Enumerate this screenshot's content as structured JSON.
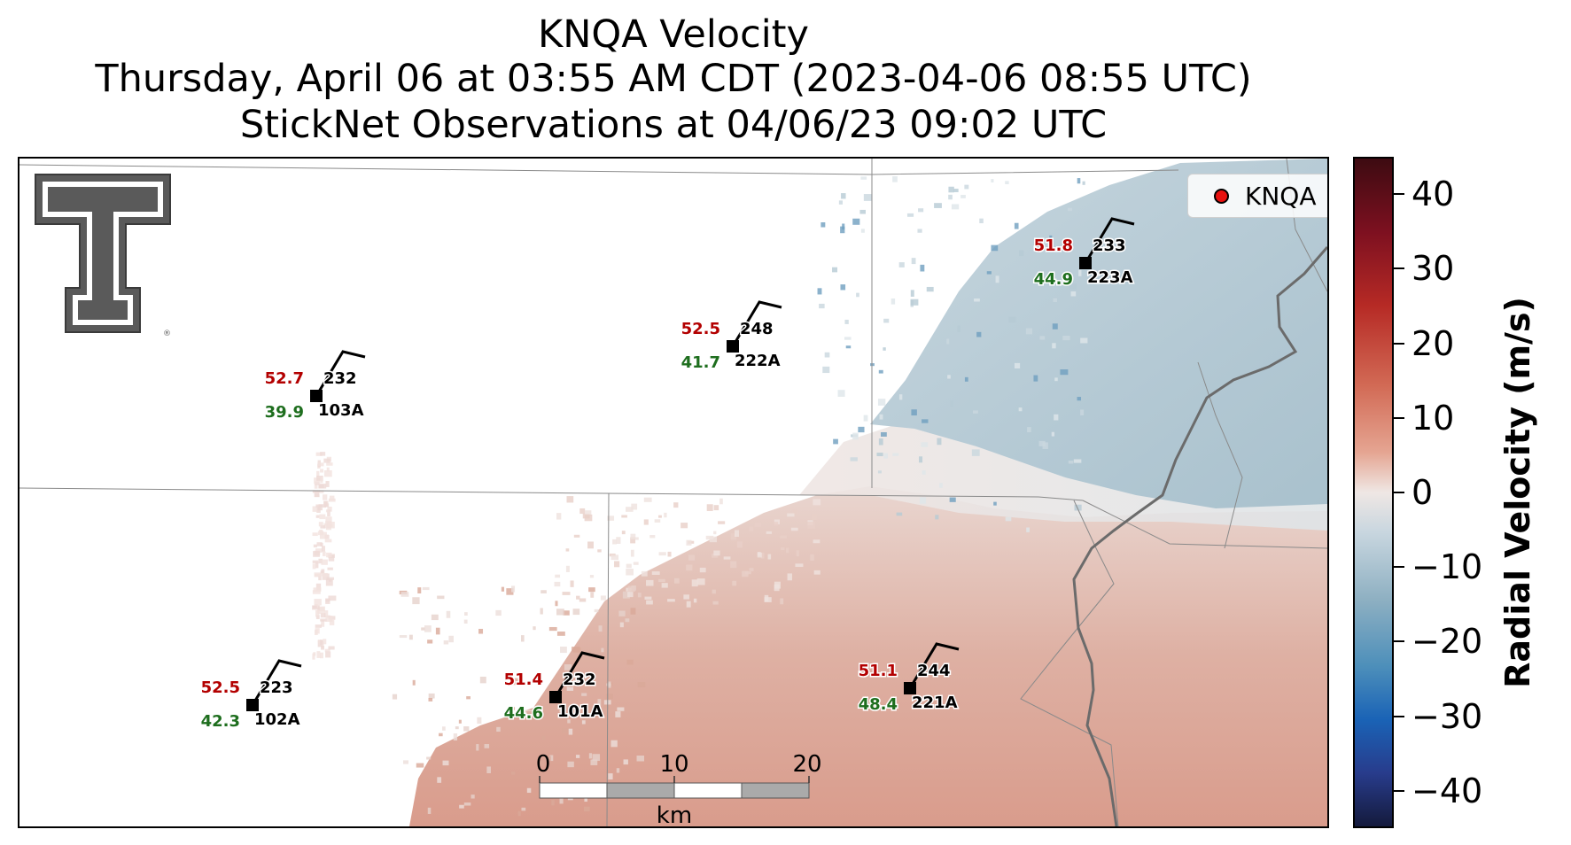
{
  "title": {
    "line1": "KNQA Velocity",
    "line2": "Thursday, April 06 at 03:55 AM CDT (2023-04-06 08:55 UTC)",
    "line3": "StickNet Observations at 04/06/23 09:02 UTC"
  },
  "legend": {
    "label": "KNQA",
    "marker_color": "#e8110f"
  },
  "logo": {
    "name": "Texas Tech Double T",
    "mark": "®"
  },
  "scalebar": {
    "ticks": [
      "0",
      "10",
      "20"
    ],
    "unit": "km"
  },
  "colorbar": {
    "title": "Radial Velocity (m/s)",
    "ticks": [
      "40",
      "30",
      "20",
      "10",
      "0",
      "−10",
      "−20",
      "−30",
      "−40"
    ],
    "range": [
      -45,
      45
    ],
    "colors": {
      "positive": "#b62a25",
      "zero": "#efe7e4",
      "negative": "#1a63b6"
    }
  },
  "stations": [
    {
      "id": "103A",
      "temp": "52.7",
      "dewpoint": "39.9",
      "direction": "232"
    },
    {
      "id": "222A",
      "temp": "52.5",
      "dewpoint": "41.7",
      "direction": "248"
    },
    {
      "id": "223A",
      "temp": "51.8",
      "dewpoint": "44.9",
      "direction": "233"
    },
    {
      "id": "102A",
      "temp": "52.5",
      "dewpoint": "42.3",
      "direction": "223"
    },
    {
      "id": "101A",
      "temp": "51.4",
      "dewpoint": "44.6",
      "direction": "232"
    },
    {
      "id": "221A",
      "temp": "51.1",
      "dewpoint": "48.4",
      "direction": "244"
    }
  ],
  "colors": {
    "temp_text": "#b30000",
    "dewpoint_text": "#1e6e1e",
    "station_marker": "#000000"
  }
}
